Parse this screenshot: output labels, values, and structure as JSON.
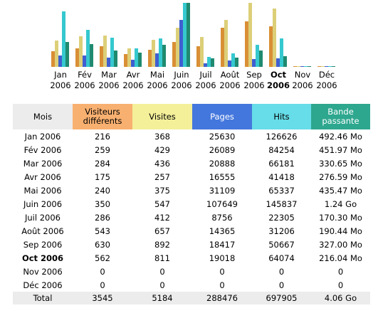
{
  "colors": {
    "visitors": "#d98f35",
    "visits": "#dccf78",
    "pages": "#3f5fd0",
    "hits": "#36c8cf",
    "bandwidth": "#1f8a6f"
  },
  "months": [
    {
      "m": "Jan",
      "y": "2006",
      "current": false
    },
    {
      "m": "Fév",
      "y": "2006",
      "current": false
    },
    {
      "m": "Mar",
      "y": "2006",
      "current": false
    },
    {
      "m": "Avr",
      "y": "2006",
      "current": false
    },
    {
      "m": "Mai",
      "y": "2006",
      "current": false
    },
    {
      "m": "Juin",
      "y": "2006",
      "current": false
    },
    {
      "m": "Juil",
      "y": "2006",
      "current": false
    },
    {
      "m": "Août",
      "y": "2006",
      "current": false
    },
    {
      "m": "Sep",
      "y": "2006",
      "current": false
    },
    {
      "m": "Oct",
      "y": "2006",
      "current": true
    },
    {
      "m": "Nov",
      "y": "2006",
      "current": false
    },
    {
      "m": "Déc",
      "y": "2006",
      "current": false
    }
  ],
  "chart_data": {
    "type": "bar",
    "categories": [
      "Jan 2006",
      "Fév 2006",
      "Mar 2006",
      "Avr 2006",
      "Mai 2006",
      "Juin 2006",
      "Juil 2006",
      "Août 2006",
      "Sep 2006",
      "Oct 2006",
      "Nov 2006",
      "Déc 2006"
    ],
    "series": [
      {
        "key": "visitors",
        "values": [
          216,
          259,
          284,
          175,
          240,
          350,
          286,
          543,
          630,
          562,
          0,
          0
        ]
      },
      {
        "key": "visits",
        "values": [
          368,
          429,
          436,
          257,
          375,
          547,
          412,
          657,
          892,
          811,
          0,
          0
        ]
      },
      {
        "key": "pages",
        "values": [
          25630,
          26089,
          20888,
          16555,
          31109,
          107649,
          8756,
          14365,
          18417,
          19018,
          0,
          0
        ]
      },
      {
        "key": "hits",
        "values": [
          126626,
          84254,
          66181,
          41418,
          65337,
          145837,
          22305,
          31206,
          50667,
          64074,
          0,
          0
        ]
      },
      {
        "key": "bandwidth_mo",
        "values": [
          492.46,
          451.97,
          330.65,
          276.59,
          435.47,
          1269.76,
          170.3,
          190.44,
          327.0,
          216.04,
          0,
          0
        ]
      }
    ]
  },
  "table": {
    "headers": {
      "mois": "Mois",
      "visitors": "Visiteurs différents",
      "visits": "Visites",
      "pages": "Pages",
      "hits": "Hits",
      "bandwidth": "Bande passante"
    },
    "rows": [
      {
        "month": "Jan 2006",
        "visitors": "216",
        "visits": "368",
        "pages": "25630",
        "hits": "126626",
        "bw": "492.46 Mo",
        "current": false
      },
      {
        "month": "Fév 2006",
        "visitors": "259",
        "visits": "429",
        "pages": "26089",
        "hits": "84254",
        "bw": "451.97 Mo",
        "current": false
      },
      {
        "month": "Mar 2006",
        "visitors": "284",
        "visits": "436",
        "pages": "20888",
        "hits": "66181",
        "bw": "330.65 Mo",
        "current": false
      },
      {
        "month": "Avr 2006",
        "visitors": "175",
        "visits": "257",
        "pages": "16555",
        "hits": "41418",
        "bw": "276.59 Mo",
        "current": false
      },
      {
        "month": "Mai 2006",
        "visitors": "240",
        "visits": "375",
        "pages": "31109",
        "hits": "65337",
        "bw": "435.47 Mo",
        "current": false
      },
      {
        "month": "Juin 2006",
        "visitors": "350",
        "visits": "547",
        "pages": "107649",
        "hits": "145837",
        "bw": "1.24 Go",
        "current": false
      },
      {
        "month": "Juil 2006",
        "visitors": "286",
        "visits": "412",
        "pages": "8756",
        "hits": "22305",
        "bw": "170.30 Mo",
        "current": false
      },
      {
        "month": "Août 2006",
        "visitors": "543",
        "visits": "657",
        "pages": "14365",
        "hits": "31206",
        "bw": "190.44 Mo",
        "current": false
      },
      {
        "month": "Sep 2006",
        "visitors": "630",
        "visits": "892",
        "pages": "18417",
        "hits": "50667",
        "bw": "327.00 Mo",
        "current": false
      },
      {
        "month": "Oct 2006",
        "visitors": "562",
        "visits": "811",
        "pages": "19018",
        "hits": "64074",
        "bw": "216.04 Mo",
        "current": true
      },
      {
        "month": "Nov 2006",
        "visitors": "0",
        "visits": "0",
        "pages": "0",
        "hits": "0",
        "bw": "0",
        "current": false
      },
      {
        "month": "Déc 2006",
        "visitors": "0",
        "visits": "0",
        "pages": "0",
        "hits": "0",
        "bw": "0",
        "current": false
      }
    ],
    "total": {
      "label": "Total",
      "visitors": "3545",
      "visits": "5184",
      "pages": "288476",
      "hits": "697905",
      "bw": "4.06 Go"
    }
  }
}
